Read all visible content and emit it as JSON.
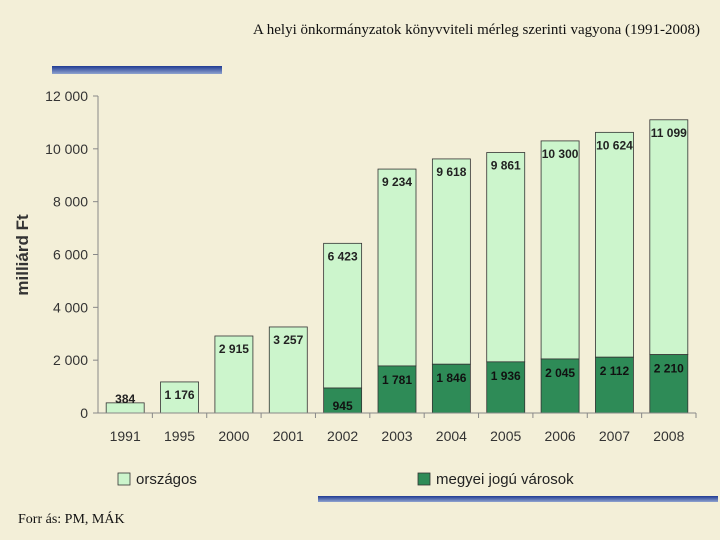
{
  "title": "A helyi önkormányzatok könyvviteli mérleg szerinti vagyona (1991-2008)",
  "source": "Forr ás: PM, MÁK",
  "colors": {
    "background": "#f3efd8",
    "orszagos": "#ccf5cc",
    "megyei": "#2e8b57",
    "bar_outline": "#333333"
  },
  "chart_data": {
    "type": "bar",
    "stacked": true,
    "categories": [
      "1991",
      "1995",
      "2000",
      "2001",
      "2002",
      "2003",
      "2004",
      "2005",
      "2006",
      "2007",
      "2008"
    ],
    "series": [
      {
        "name": "megyei jogú városok",
        "values": [
          0,
          0,
          0,
          0,
          945,
          1781,
          1846,
          1936,
          2045,
          2112,
          2210
        ]
      },
      {
        "name": "országos",
        "values": [
          384,
          1176,
          2915,
          3257,
          5478,
          7453,
          7772,
          7925,
          8255,
          8512,
          8889
        ]
      }
    ],
    "totals": [
      384,
      1176,
      2915,
      3257,
      6423,
      9234,
      9618,
      9861,
      10300,
      10624,
      11099
    ],
    "total_labels": [
      "384",
      "1 176",
      "2 915",
      "3 257",
      "6 423",
      "9 234",
      "9 618",
      "9 861",
      "10 300",
      "10 624",
      "11 099"
    ],
    "segment_labels": [
      "",
      "",
      "",
      "",
      "945",
      "1 781",
      "1 846",
      "1 936",
      "2 045",
      "2 112",
      "2 210"
    ],
    "ylabel": "milliárd Ft",
    "ylim": [
      0,
      12000
    ],
    "yticks": [
      0,
      2000,
      4000,
      6000,
      8000,
      10000,
      12000
    ],
    "ytick_labels": [
      "0",
      "2 000",
      "4 000",
      "6 000",
      "8 000",
      "10 000",
      "12 000"
    ],
    "legend": [
      {
        "label": "országos",
        "color": "#ccf5cc"
      },
      {
        "label": "megyei jogú városok",
        "color": "#2e8b57"
      }
    ],
    "legend_position": "bottom",
    "grid": false
  }
}
